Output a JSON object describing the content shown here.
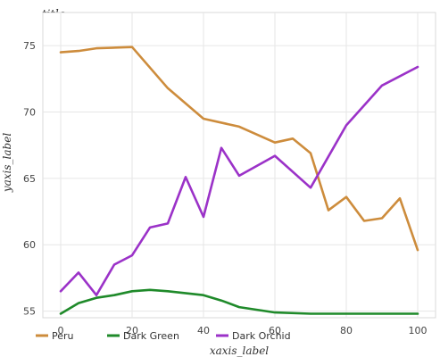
{
  "chart_data": {
    "type": "line",
    "title": "title",
    "xlabel": "xaxis_label",
    "ylabel": "yaxis_label",
    "xlim": [
      -5,
      105
    ],
    "ylim": [
      54.5,
      77.5
    ],
    "xticks": [
      0,
      20,
      40,
      60,
      80,
      100
    ],
    "yticks": [
      55,
      60,
      65,
      70,
      75
    ],
    "grid": true,
    "legend_position": "bottom-left",
    "series": [
      {
        "name": "Peru",
        "color": "#cd8c3c",
        "x": [
          0,
          5,
          10,
          20,
          30,
          40,
          50,
          60,
          65,
          70,
          75,
          80,
          85,
          90,
          95,
          100
        ],
        "y": [
          74.5,
          74.6,
          74.8,
          74.9,
          71.8,
          69.5,
          68.9,
          67.7,
          68.0,
          66.9,
          62.6,
          63.6,
          61.8,
          62.0,
          63.5,
          59.6
        ]
      },
      {
        "name": "Dark Green",
        "color": "#1f8a2a",
        "x": [
          0,
          5,
          10,
          15,
          20,
          25,
          30,
          40,
          45,
          50,
          60,
          70,
          80,
          90,
          100
        ],
        "y": [
          54.8,
          55.6,
          56.0,
          56.2,
          56.5,
          56.6,
          56.5,
          56.2,
          55.8,
          55.3,
          54.9,
          54.8,
          54.8,
          54.8,
          54.8
        ]
      },
      {
        "name": "Dark Orchid",
        "color": "#9b32c8",
        "x": [
          0,
          5,
          10,
          15,
          20,
          25,
          30,
          35,
          40,
          45,
          50,
          60,
          70,
          80,
          90,
          100
        ],
        "y": [
          56.5,
          57.9,
          56.2,
          58.5,
          59.2,
          61.3,
          61.6,
          65.1,
          62.1,
          67.3,
          65.2,
          66.7,
          64.3,
          69.0,
          72.0,
          73.4
        ]
      }
    ]
  }
}
